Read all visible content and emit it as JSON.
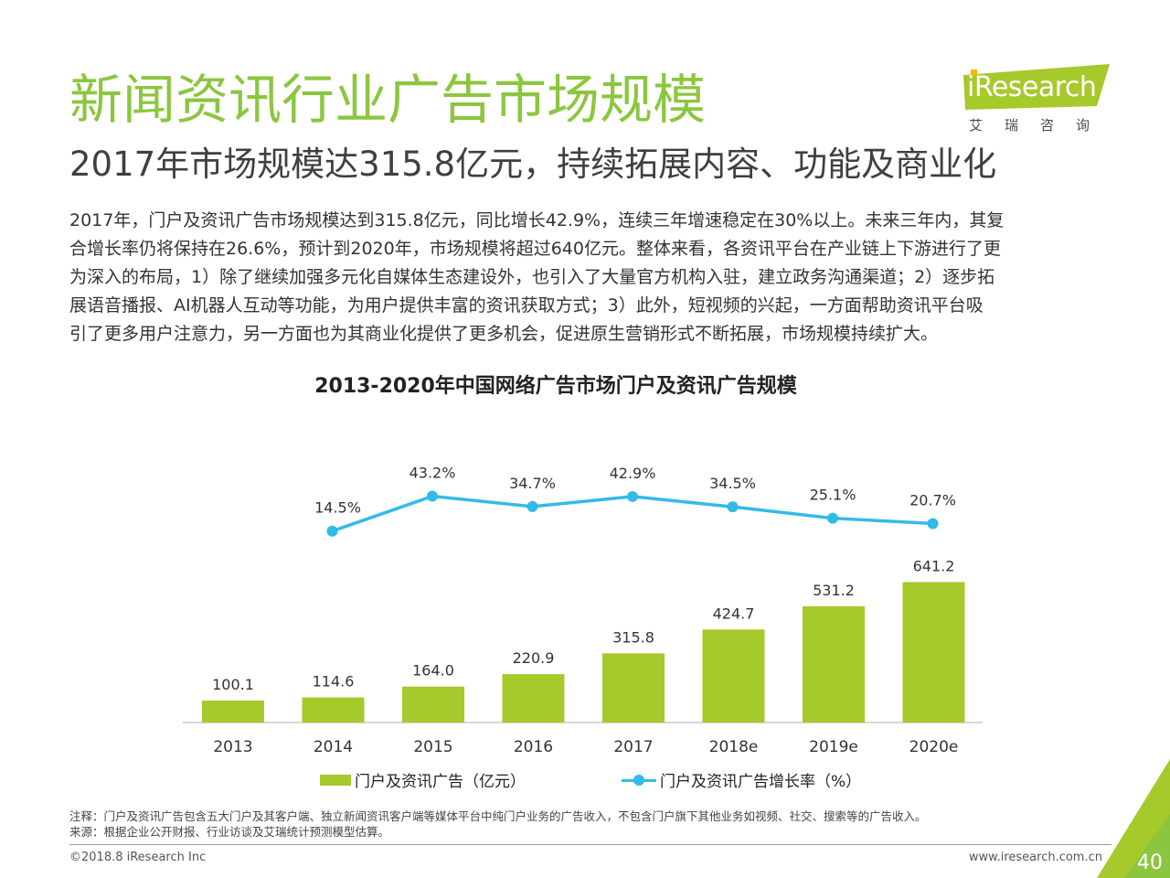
{
  "header": {
    "title": "新闻资讯行业广告市场规模",
    "subtitle": "2017年市场规模达315.8亿元，持续拓展内容、功能及商业化"
  },
  "logo": {
    "text": "iResearch",
    "cn": "艾瑞咨询"
  },
  "intro": {
    "lines": [
      "2017年，门户及资讯广告市场规模达到315.8亿元，同比增长42.9%，连续三年增速稳定在30%以上。未来三年内，其复",
      "合增长率仍将保持在26.6%，预计到2020年，市场规模将超过640亿元。整体来看，各资讯平台在产业链上下游进行了更",
      "为深入的布局，1）除了继续加强多元化自媒体生态建设外，也引入了大量官方机构入驻，建立政务沟通渠道；2）逐步拓",
      "展语音播报、AI机器人互动等功能，为用户提供丰富的资讯获取方式；3）此外，短视频的兴起，一方面帮助资讯平台吸",
      "引了更多用户注意力，另一方面也为其商业化提供了更多机会，促进原生营销形式不断拓展，市场规模持续扩大。"
    ]
  },
  "chart_data": {
    "type": "bar",
    "title": "2013-2020年中国网络广告市场门户及资讯广告规模",
    "categories": [
      "2013",
      "2014",
      "2015",
      "2016",
      "2017",
      "2018e",
      "2019e",
      "2020e"
    ],
    "series": [
      {
        "name": "门户及资讯广告（亿元）",
        "type": "bar",
        "values": [
          100.1,
          114.6,
          164.0,
          220.9,
          315.8,
          424.7,
          531.2,
          641.2
        ],
        "labels": [
          "100.1",
          "114.6",
          "164.0",
          "220.9",
          "315.8",
          "424.7",
          "531.2",
          "641.2"
        ]
      },
      {
        "name": "门户及资讯广告增长率（%）",
        "type": "line",
        "values": [
          14.5,
          43.2,
          34.7,
          42.9,
          34.5,
          25.1,
          20.7
        ],
        "x": [
          "2014",
          "2015",
          "2016",
          "2017",
          "2018e",
          "2019e",
          "2020e"
        ],
        "labels": [
          "14.5%",
          "43.2%",
          "34.7%",
          "42.9%",
          "34.5%",
          "25.1%",
          "20.7%"
        ]
      }
    ],
    "legend_position": "bottom",
    "grid": false
  },
  "colors": {
    "accent_green": "#8cc63f",
    "bar": "#a6c92b",
    "line": "#33bbe8",
    "title_gray": "#3f3f3f"
  },
  "footer": {
    "note": "注释：门户及资讯广告包含五大门户及其客户端、独立新闻资讯客户端等媒体平台中纯门户业务的广告收入，不包含门户旗下其他业务如视频、社交、搜索等的广告收入。",
    "source": "来源：根据企业公开财报、行业访谈及艾瑞统计预测模型估算。",
    "copyright": "©2018.8 iResearch Inc",
    "website": "www.iresearch.com.cn",
    "page_number": "40"
  }
}
